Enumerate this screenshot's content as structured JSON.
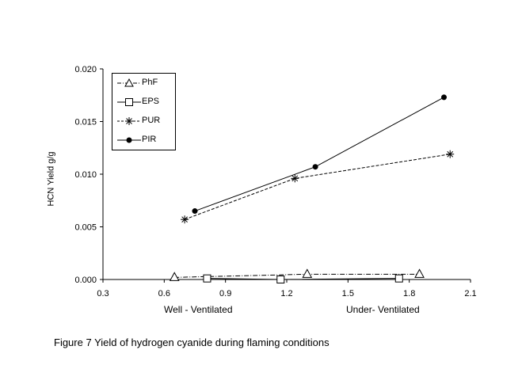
{
  "chart_data": {
    "type": "scatter",
    "ylabel": "HCN Yield g/g",
    "xlim": [
      0.3,
      2.1
    ],
    "ylim": [
      0.0,
      0.02
    ],
    "xticks": [
      "0.3",
      "0.6",
      "0.9",
      "1.2",
      "1.5",
      "1.8",
      "2.1"
    ],
    "yticks": [
      "0.000",
      "0.005",
      "0.010",
      "0.015",
      "0.020"
    ],
    "x_category_labels": [
      "Well - Ventilated",
      "Under- Ventilated"
    ],
    "legend_position": "top-left",
    "grid": false,
    "series": [
      {
        "name": "PhF",
        "marker": "triangle",
        "line": "dash-dot",
        "points": [
          [
            0.65,
            0.0002
          ],
          [
            1.3,
            0.0005
          ],
          [
            1.85,
            0.0005
          ]
        ]
      },
      {
        "name": "EPS",
        "marker": "square",
        "line": "solid",
        "points": [
          [
            0.81,
            0.0001
          ],
          [
            1.17,
            0.0
          ],
          [
            1.75,
            0.0001
          ]
        ]
      },
      {
        "name": "PUR",
        "marker": "star",
        "line": "dashed",
        "points": [
          [
            0.7,
            0.0057
          ],
          [
            1.24,
            0.0096
          ],
          [
            2.0,
            0.0119
          ]
        ]
      },
      {
        "name": "PIR",
        "marker": "circle",
        "line": "solid",
        "points": [
          [
            0.75,
            0.0065
          ],
          [
            1.34,
            0.0107
          ],
          [
            1.97,
            0.0173
          ]
        ]
      }
    ]
  },
  "caption": "Figure 7 Yield of hydrogen cyanide during flaming conditions"
}
